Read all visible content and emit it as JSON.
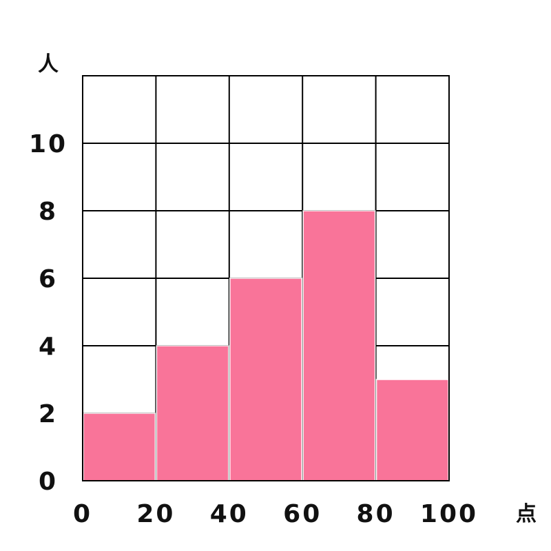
{
  "chart_data": {
    "type": "bar",
    "bar_style": "histogram",
    "bins": [
      {
        "from": 0,
        "to": 20,
        "value": 2
      },
      {
        "from": 20,
        "to": 40,
        "value": 4
      },
      {
        "from": 40,
        "to": 60,
        "value": 6
      },
      {
        "from": 60,
        "to": 80,
        "value": 8
      },
      {
        "from": 80,
        "to": 100,
        "value": 3
      }
    ],
    "x_ticks": [
      "0",
      "20",
      "40",
      "60",
      "80",
      "100"
    ],
    "y_ticks": [
      "0",
      "2",
      "4",
      "6",
      "8",
      "10"
    ],
    "xlim": [
      0,
      100
    ],
    "ylim": [
      0,
      12
    ],
    "x_grid_step": 20,
    "y_grid_step": 2,
    "x_unit": "点",
    "y_unit": "人",
    "grid": true,
    "bar_color": "#f97499",
    "grid_color": "#000000",
    "title": ""
  }
}
